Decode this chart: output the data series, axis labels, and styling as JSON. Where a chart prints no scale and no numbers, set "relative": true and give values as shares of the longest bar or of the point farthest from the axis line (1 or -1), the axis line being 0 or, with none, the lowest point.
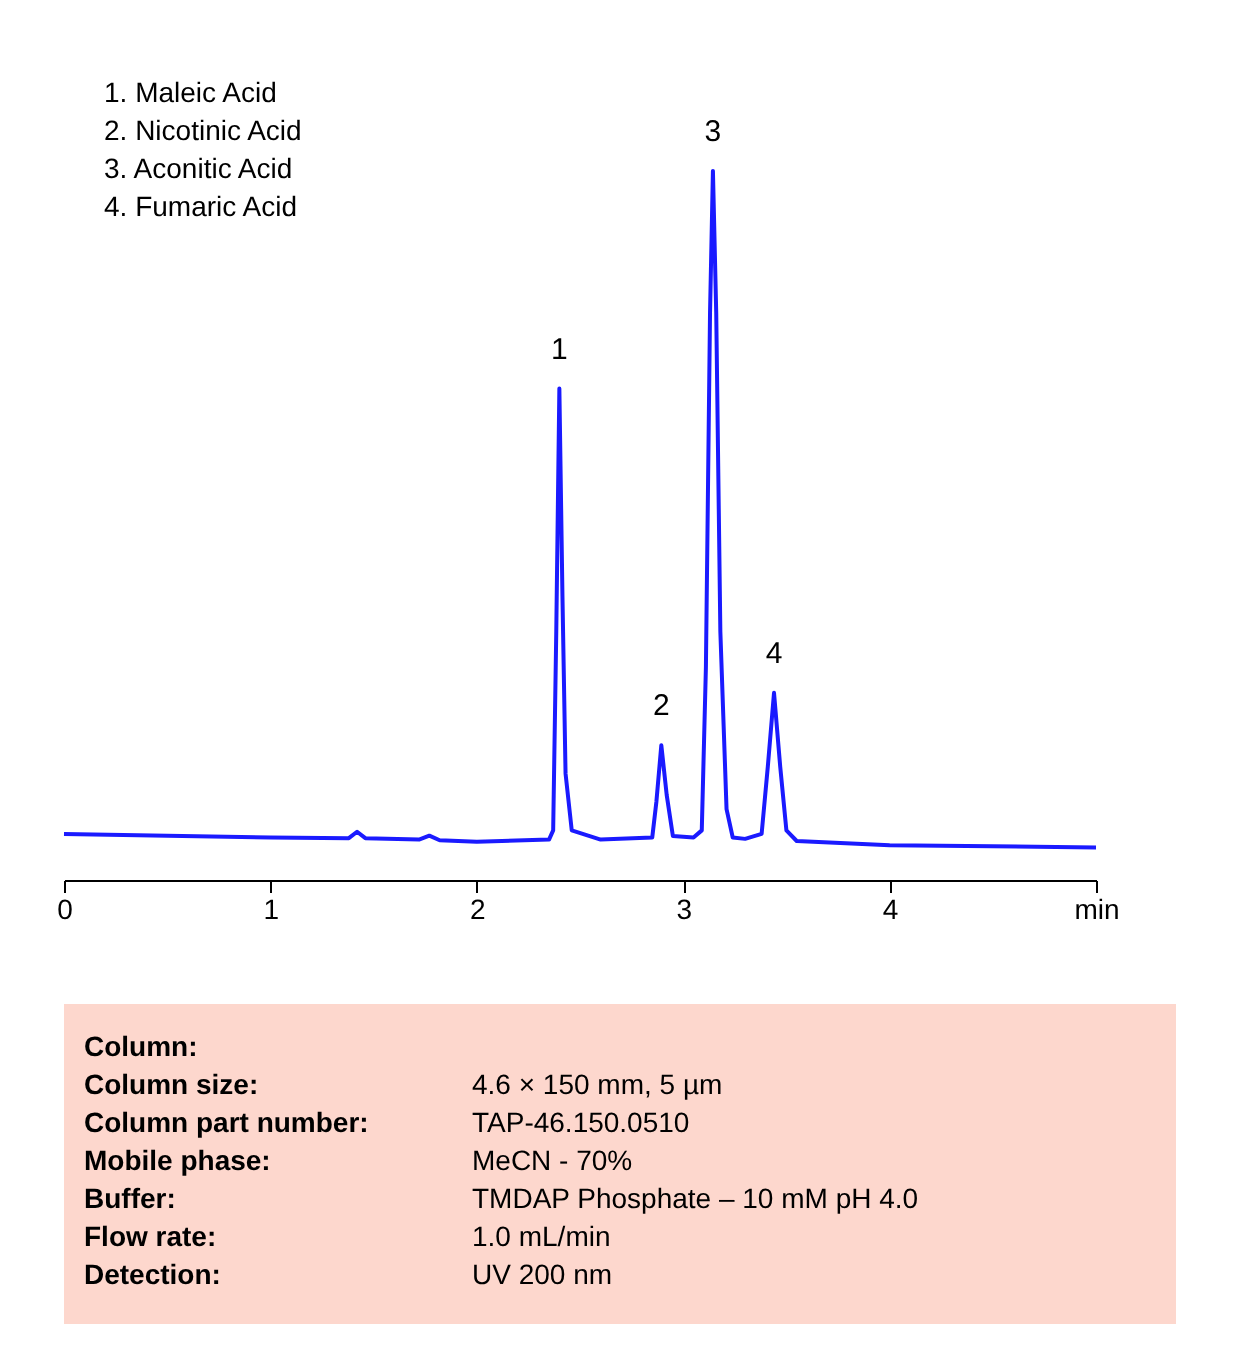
{
  "chart_data": {
    "type": "line",
    "relative": true,
    "x": [
      0,
      1.0,
      1.38,
      1.42,
      1.46,
      1.72,
      1.77,
      1.82,
      2.0,
      2.35,
      2.37,
      2.385,
      2.4,
      2.415,
      2.43,
      2.46,
      2.6,
      2.85,
      2.87,
      2.894,
      2.92,
      2.95,
      3.05,
      3.09,
      3.11,
      3.13,
      3.144,
      3.16,
      3.18,
      3.21,
      3.24,
      3.3,
      3.38,
      3.41,
      3.44,
      3.47,
      3.5,
      3.55,
      4.0,
      5.0
    ],
    "series": [
      {
        "color": "#1a1aff",
        "values": [
          0.065,
          0.06,
          0.059,
          0.068,
          0.059,
          0.057,
          0.0625,
          0.056,
          0.054,
          0.057,
          0.07,
          0.35,
          0.693,
          0.4,
          0.15,
          0.07,
          0.057,
          0.06,
          0.11,
          0.19,
          0.12,
          0.062,
          0.06,
          0.07,
          0.3,
          0.8,
          1.0,
          0.8,
          0.35,
          0.1,
          0.06,
          0.058,
          0.065,
          0.16,
          0.264,
          0.16,
          0.07,
          0.055,
          0.049,
          0.046
        ]
      }
    ],
    "xlim": [
      0,
      5
    ],
    "xticks": [
      0,
      1,
      2,
      3,
      4,
      {
        "value": 5,
        "label": "min"
      }
    ],
    "grid": false,
    "marker": "none",
    "line_style": "solid",
    "annotations": [
      "1.   Maleic  Acid",
      "2.   Nicotinic Acid",
      "3.   Aconitic Acid",
      "4.   Fumaric Acid",
      {
        "text": "1",
        "x": 2.4,
        "y": 0.693
      },
      {
        "text": "2",
        "x": 2.894,
        "y": 0.19
      },
      {
        "text": "3",
        "x": 3.144,
        "y": 1.0
      },
      {
        "text": "4",
        "x": 3.44,
        "y": 0.264
      },
      "Column:",
      "Column size: 4.6 × 150 mm, 5 µm",
      "Column part number: TAP-46.150.0510",
      "Mobile phase: MeCN  - 70%",
      "Buffer: TMDAP Phosphate  – 10 mM  pH 4.0",
      "Flow rate: 1.0  mL/min",
      "Detection: UV 200 nm"
    ]
  }
}
